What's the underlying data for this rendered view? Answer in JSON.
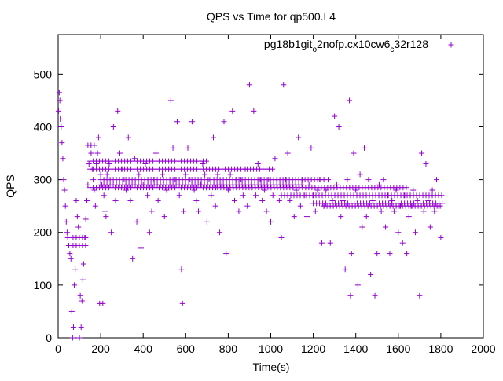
{
  "chart_data": {
    "type": "scatter",
    "title": "QPS vs Time for qp500.L4",
    "xlabel": "Time(s)",
    "ylabel": "QPS",
    "xlim": [
      0,
      2000
    ],
    "ylim": [
      0,
      575
    ],
    "xticks": [
      0,
      200,
      400,
      600,
      800,
      1000,
      1200,
      1400,
      1600,
      1800,
      2000
    ],
    "yticks": [
      0,
      100,
      200,
      300,
      400,
      500
    ],
    "grid": false,
    "legend_position": "top-right",
    "marker": "plus",
    "series": [
      {
        "name_parts": [
          "pg18b1git",
          "o",
          "2nofp.cx10cw6",
          "c",
          "32r128"
        ],
        "color": "#9400d3",
        "points": [
          [
            2,
            430
          ],
          [
            5,
            465
          ],
          [
            8,
            450
          ],
          [
            10,
            415
          ],
          [
            14,
            400
          ],
          [
            18,
            370
          ],
          [
            22,
            340
          ],
          [
            26,
            300
          ],
          [
            30,
            280
          ],
          [
            34,
            250
          ],
          [
            38,
            220
          ],
          [
            42,
            200
          ],
          [
            45,
            190
          ],
          [
            50,
            175
          ],
          [
            55,
            160
          ],
          [
            60,
            150
          ],
          [
            64,
            50
          ],
          [
            68,
            0
          ],
          [
            72,
            20
          ],
          [
            76,
            100
          ],
          [
            80,
            130
          ],
          [
            85,
            260
          ],
          [
            90,
            230
          ],
          [
            95,
            210
          ],
          [
            100,
            0
          ],
          [
            104,
            80
          ],
          [
            108,
            20
          ],
          [
            112,
            70
          ],
          [
            116,
            110
          ],
          [
            120,
            140
          ],
          [
            125,
            190
          ],
          [
            130,
            225
          ],
          [
            135,
            260
          ],
          [
            140,
            290
          ],
          [
            145,
            330
          ],
          [
            150,
            365
          ],
          [
            155,
            350
          ],
          [
            160,
            320
          ],
          [
            165,
            300
          ],
          [
            170,
            280
          ],
          [
            175,
            250
          ],
          [
            180,
            330
          ],
          [
            185,
            350
          ],
          [
            190,
            380
          ],
          [
            195,
            65
          ],
          [
            200,
            310
          ],
          [
            205,
            290
          ],
          [
            210,
            65
          ],
          [
            215,
            270
          ],
          [
            220,
            240
          ],
          [
            225,
            230
          ],
          [
            230,
            310
          ],
          [
            235,
            300
          ],
          [
            240,
            330
          ],
          [
            250,
            200
          ],
          [
            260,
            400
          ],
          [
            270,
            260
          ],
          [
            280,
            430
          ],
          [
            290,
            350
          ],
          [
            300,
            320
          ],
          [
            310,
            300
          ],
          [
            320,
            280
          ],
          [
            330,
            380
          ],
          [
            340,
            260
          ],
          [
            350,
            150
          ],
          [
            360,
            340
          ],
          [
            370,
            220
          ],
          [
            380,
            310
          ],
          [
            390,
            170
          ],
          [
            400,
            290
          ],
          [
            410,
            330
          ],
          [
            420,
            270
          ],
          [
            430,
            200
          ],
          [
            440,
            240
          ],
          [
            450,
            300
          ],
          [
            460,
            350
          ],
          [
            470,
            260
          ],
          [
            480,
            290
          ],
          [
            490,
            310
          ],
          [
            500,
            230
          ],
          [
            510,
            280
          ],
          [
            520,
            320
          ],
          [
            530,
            450
          ],
          [
            540,
            360
          ],
          [
            550,
            300
          ],
          [
            560,
            410
          ],
          [
            570,
            270
          ],
          [
            580,
            130
          ],
          [
            585,
            65
          ],
          [
            590,
            240
          ],
          [
            600,
            310
          ],
          [
            610,
            360
          ],
          [
            620,
            300
          ],
          [
            630,
            410
          ],
          [
            640,
            280
          ],
          [
            650,
            260
          ],
          [
            660,
            240
          ],
          [
            670,
            290
          ],
          [
            680,
            330
          ],
          [
            690,
            310
          ],
          [
            700,
            220
          ],
          [
            710,
            300
          ],
          [
            720,
            270
          ],
          [
            730,
            380
          ],
          [
            740,
            250
          ],
          [
            750,
            310
          ],
          [
            760,
            200
          ],
          [
            770,
            290
          ],
          [
            780,
            410
          ],
          [
            790,
            160
          ],
          [
            800,
            280
          ],
          [
            810,
            310
          ],
          [
            820,
            430
          ],
          [
            830,
            260
          ],
          [
            840,
            300
          ],
          [
            850,
            240
          ],
          [
            860,
            300
          ],
          [
            870,
            270
          ],
          [
            880,
            320
          ],
          [
            890,
            250
          ],
          [
            900,
            480
          ],
          [
            910,
            290
          ],
          [
            920,
            430
          ],
          [
            930,
            270
          ],
          [
            940,
            330
          ],
          [
            950,
            300
          ],
          [
            960,
            260
          ],
          [
            970,
            280
          ],
          [
            980,
            240
          ],
          [
            990,
            300
          ],
          [
            1000,
            220
          ],
          [
            1010,
            270
          ],
          [
            1020,
            340
          ],
          [
            1030,
            300
          ],
          [
            1040,
            260
          ],
          [
            1050,
            190
          ],
          [
            1060,
            480
          ],
          [
            1070,
            300
          ],
          [
            1080,
            350
          ],
          [
            1090,
            260
          ],
          [
            1100,
            300
          ],
          [
            1110,
            230
          ],
          [
            1120,
            280
          ],
          [
            1130,
            380
          ],
          [
            1140,
            250
          ],
          [
            1150,
            300
          ],
          [
            1160,
            270
          ],
          [
            1170,
            230
          ],
          [
            1180,
            290
          ],
          [
            1190,
            360
          ],
          [
            1200,
            270
          ],
          [
            1210,
            240
          ],
          [
            1220,
            280
          ],
          [
            1230,
            300
          ],
          [
            1240,
            180
          ],
          [
            1250,
            250
          ],
          [
            1260,
            280
          ],
          [
            1270,
            300
          ],
          [
            1280,
            180
          ],
          [
            1290,
            260
          ],
          [
            1300,
            420
          ],
          [
            1310,
            290
          ],
          [
            1320,
            400
          ],
          [
            1330,
            230
          ],
          [
            1340,
            260
          ],
          [
            1350,
            130
          ],
          [
            1360,
            300
          ],
          [
            1370,
            450
          ],
          [
            1375,
            80
          ],
          [
            1380,
            160
          ],
          [
            1390,
            350
          ],
          [
            1400,
            280
          ],
          [
            1410,
            100
          ],
          [
            1420,
            310
          ],
          [
            1430,
            210
          ],
          [
            1440,
            360
          ],
          [
            1450,
            230
          ],
          [
            1460,
            300
          ],
          [
            1470,
            120
          ],
          [
            1480,
            260
          ],
          [
            1490,
            80
          ],
          [
            1500,
            160
          ],
          [
            1510,
            290
          ],
          [
            1520,
            240
          ],
          [
            1530,
            300
          ],
          [
            1540,
            210
          ],
          [
            1550,
            270
          ],
          [
            1560,
            160
          ],
          [
            1570,
            260
          ],
          [
            1580,
            240
          ],
          [
            1590,
            280
          ],
          [
            1600,
            200
          ],
          [
            1610,
            250
          ],
          [
            1620,
            180
          ],
          [
            1630,
            270
          ],
          [
            1640,
            160
          ],
          [
            1650,
            230
          ],
          [
            1660,
            250
          ],
          [
            1670,
            280
          ],
          [
            1680,
            200
          ],
          [
            1690,
            260
          ],
          [
            1700,
            80
          ],
          [
            1710,
            350
          ],
          [
            1720,
            240
          ],
          [
            1730,
            330
          ],
          [
            1740,
            260
          ],
          [
            1750,
            210
          ],
          [
            1760,
            280
          ],
          [
            1770,
            240
          ],
          [
            1780,
            300
          ],
          [
            1790,
            250
          ],
          [
            1800,
            190
          ]
        ],
        "dense_bands": [
          {
            "value": 255,
            "from": 1200,
            "to": 1810
          },
          {
            "value": 270,
            "from": 1050,
            "to": 1810
          },
          {
            "value": 285,
            "from": 750,
            "to": 1640
          },
          {
            "value": 290,
            "from": 200,
            "to": 1150
          },
          {
            "value": 300,
            "from": 200,
            "to": 1250
          },
          {
            "value": 320,
            "from": 150,
            "to": 1020
          },
          {
            "value": 335,
            "from": 150,
            "to": 700
          },
          {
            "value": 285,
            "from": 150,
            "to": 750
          },
          {
            "value": 250,
            "from": 1250,
            "to": 1810
          },
          {
            "value": 190,
            "from": 70,
            "to": 140
          },
          {
            "value": 175,
            "from": 70,
            "to": 140
          },
          {
            "value": 365,
            "from": 140,
            "to": 170
          }
        ]
      }
    ]
  }
}
